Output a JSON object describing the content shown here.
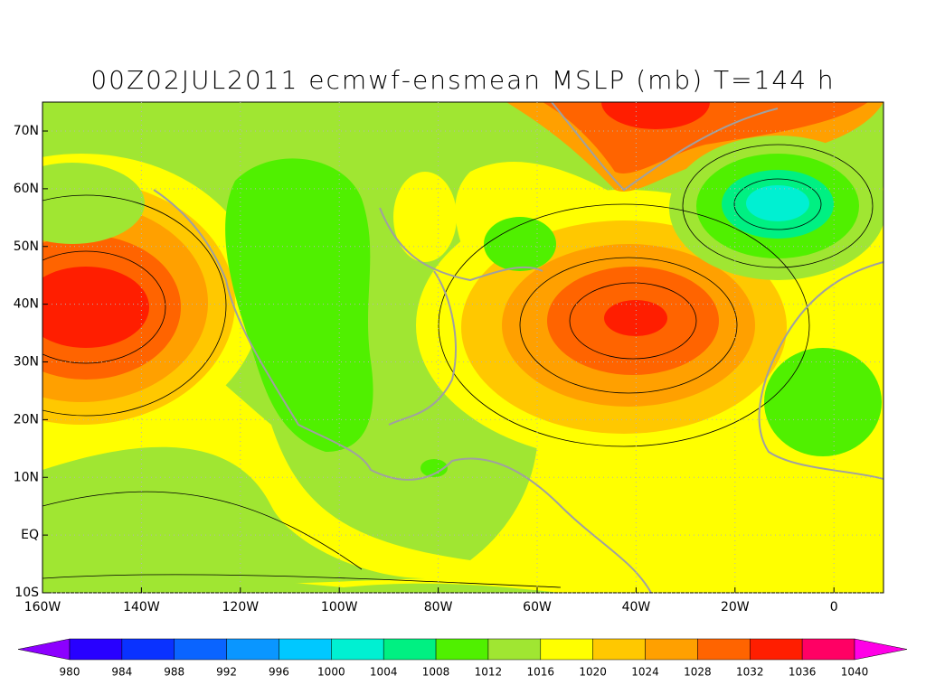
{
  "title": "00Z02JUL2011 ecmwf-ensmean MSLP (mb) T=144 h",
  "map": {
    "lat_labels": [
      "70N",
      "60N",
      "50N",
      "40N",
      "30N",
      "20N",
      "10N",
      "EQ",
      "10S"
    ],
    "lon_labels": [
      "160W",
      "140W",
      "120W",
      "100W",
      "80W",
      "60W",
      "40W",
      "20W",
      "0"
    ]
  },
  "colorbar": {
    "labels": [
      980,
      984,
      988,
      992,
      996,
      1000,
      1004,
      1008,
      1012,
      1016,
      1020,
      1024,
      1028,
      1032,
      1036,
      1040
    ],
    "under_color": "#8c00ff",
    "colors": [
      "#2800ff",
      "#0a32ff",
      "#0a64ff",
      "#0a96ff",
      "#00c8ff",
      "#00f0d2",
      "#00f082",
      "#50f000",
      "#a0e632",
      "#ffff00",
      "#ffc800",
      "#ffa000",
      "#ff6400",
      "#ff1e00",
      "#ff0064",
      "#e6009b"
    ],
    "over_color": "#ff00e6"
  }
}
